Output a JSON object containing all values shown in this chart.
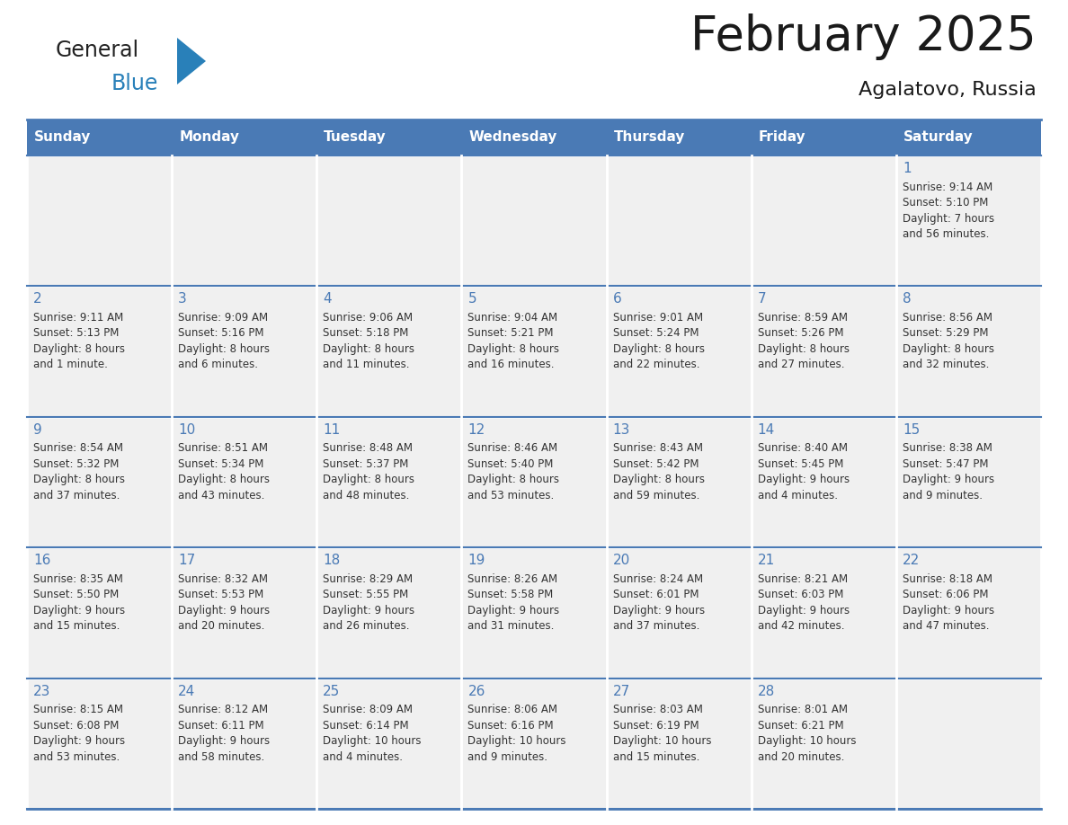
{
  "title": "February 2025",
  "subtitle": "Agalatovo, Russia",
  "days_of_week": [
    "Sunday",
    "Monday",
    "Tuesday",
    "Wednesday",
    "Thursday",
    "Friday",
    "Saturday"
  ],
  "header_bg": "#4a7ab5",
  "header_text_color": "#ffffff",
  "cell_bg": "#f0f0f0",
  "border_color": "#4a7ab5",
  "day_number_color": "#4a7ab5",
  "text_color": "#333333",
  "title_color": "#1a1a1a",
  "logo_general_color": "#222222",
  "logo_blue_color": "#2980b9",
  "logo_triangle_color": "#2980b9",
  "weeks": [
    [
      {
        "day": "",
        "info": ""
      },
      {
        "day": "",
        "info": ""
      },
      {
        "day": "",
        "info": ""
      },
      {
        "day": "",
        "info": ""
      },
      {
        "day": "",
        "info": ""
      },
      {
        "day": "",
        "info": ""
      },
      {
        "day": "1",
        "info": "Sunrise: 9:14 AM\nSunset: 5:10 PM\nDaylight: 7 hours\nand 56 minutes."
      }
    ],
    [
      {
        "day": "2",
        "info": "Sunrise: 9:11 AM\nSunset: 5:13 PM\nDaylight: 8 hours\nand 1 minute."
      },
      {
        "day": "3",
        "info": "Sunrise: 9:09 AM\nSunset: 5:16 PM\nDaylight: 8 hours\nand 6 minutes."
      },
      {
        "day": "4",
        "info": "Sunrise: 9:06 AM\nSunset: 5:18 PM\nDaylight: 8 hours\nand 11 minutes."
      },
      {
        "day": "5",
        "info": "Sunrise: 9:04 AM\nSunset: 5:21 PM\nDaylight: 8 hours\nand 16 minutes."
      },
      {
        "day": "6",
        "info": "Sunrise: 9:01 AM\nSunset: 5:24 PM\nDaylight: 8 hours\nand 22 minutes."
      },
      {
        "day": "7",
        "info": "Sunrise: 8:59 AM\nSunset: 5:26 PM\nDaylight: 8 hours\nand 27 minutes."
      },
      {
        "day": "8",
        "info": "Sunrise: 8:56 AM\nSunset: 5:29 PM\nDaylight: 8 hours\nand 32 minutes."
      }
    ],
    [
      {
        "day": "9",
        "info": "Sunrise: 8:54 AM\nSunset: 5:32 PM\nDaylight: 8 hours\nand 37 minutes."
      },
      {
        "day": "10",
        "info": "Sunrise: 8:51 AM\nSunset: 5:34 PM\nDaylight: 8 hours\nand 43 minutes."
      },
      {
        "day": "11",
        "info": "Sunrise: 8:48 AM\nSunset: 5:37 PM\nDaylight: 8 hours\nand 48 minutes."
      },
      {
        "day": "12",
        "info": "Sunrise: 8:46 AM\nSunset: 5:40 PM\nDaylight: 8 hours\nand 53 minutes."
      },
      {
        "day": "13",
        "info": "Sunrise: 8:43 AM\nSunset: 5:42 PM\nDaylight: 8 hours\nand 59 minutes."
      },
      {
        "day": "14",
        "info": "Sunrise: 8:40 AM\nSunset: 5:45 PM\nDaylight: 9 hours\nand 4 minutes."
      },
      {
        "day": "15",
        "info": "Sunrise: 8:38 AM\nSunset: 5:47 PM\nDaylight: 9 hours\nand 9 minutes."
      }
    ],
    [
      {
        "day": "16",
        "info": "Sunrise: 8:35 AM\nSunset: 5:50 PM\nDaylight: 9 hours\nand 15 minutes."
      },
      {
        "day": "17",
        "info": "Sunrise: 8:32 AM\nSunset: 5:53 PM\nDaylight: 9 hours\nand 20 minutes."
      },
      {
        "day": "18",
        "info": "Sunrise: 8:29 AM\nSunset: 5:55 PM\nDaylight: 9 hours\nand 26 minutes."
      },
      {
        "day": "19",
        "info": "Sunrise: 8:26 AM\nSunset: 5:58 PM\nDaylight: 9 hours\nand 31 minutes."
      },
      {
        "day": "20",
        "info": "Sunrise: 8:24 AM\nSunset: 6:01 PM\nDaylight: 9 hours\nand 37 minutes."
      },
      {
        "day": "21",
        "info": "Sunrise: 8:21 AM\nSunset: 6:03 PM\nDaylight: 9 hours\nand 42 minutes."
      },
      {
        "day": "22",
        "info": "Sunrise: 8:18 AM\nSunset: 6:06 PM\nDaylight: 9 hours\nand 47 minutes."
      }
    ],
    [
      {
        "day": "23",
        "info": "Sunrise: 8:15 AM\nSunset: 6:08 PM\nDaylight: 9 hours\nand 53 minutes."
      },
      {
        "day": "24",
        "info": "Sunrise: 8:12 AM\nSunset: 6:11 PM\nDaylight: 9 hours\nand 58 minutes."
      },
      {
        "day": "25",
        "info": "Sunrise: 8:09 AM\nSunset: 6:14 PM\nDaylight: 10 hours\nand 4 minutes."
      },
      {
        "day": "26",
        "info": "Sunrise: 8:06 AM\nSunset: 6:16 PM\nDaylight: 10 hours\nand 9 minutes."
      },
      {
        "day": "27",
        "info": "Sunrise: 8:03 AM\nSunset: 6:19 PM\nDaylight: 10 hours\nand 15 minutes."
      },
      {
        "day": "28",
        "info": "Sunrise: 8:01 AM\nSunset: 6:21 PM\nDaylight: 10 hours\nand 20 minutes."
      },
      {
        "day": "",
        "info": ""
      }
    ]
  ]
}
